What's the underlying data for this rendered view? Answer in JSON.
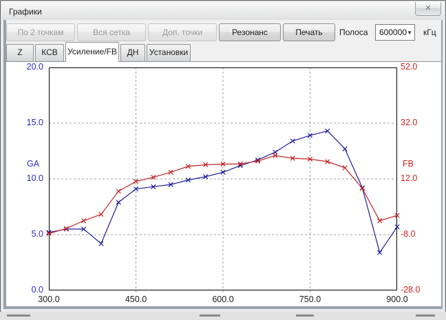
{
  "window": {
    "title": "Графики",
    "close_glyph": "✕"
  },
  "toolbar": {
    "buttons": [
      {
        "label": "По 2 точкам",
        "enabled": false
      },
      {
        "label": "Вся сетка",
        "enabled": false
      },
      {
        "label": "Доп. точки",
        "enabled": false
      },
      {
        "label": "Резонанс",
        "enabled": true
      },
      {
        "label": "Печать",
        "enabled": true
      }
    ],
    "band_label": "Полоса",
    "band_value": "600000",
    "band_unit": "кГц",
    "combo_arrow": "▼"
  },
  "tabs": [
    {
      "label": "Z",
      "active": false
    },
    {
      "label": "КСВ",
      "active": false
    },
    {
      "label": "Усиление/FB",
      "active": true
    },
    {
      "label": "ДН",
      "active": false
    },
    {
      "label": "Установки",
      "active": false
    }
  ],
  "chart_data": {
    "type": "line",
    "title": "",
    "grid": true,
    "x_axis": {
      "min": 300,
      "max": 900,
      "ticks": [
        300,
        450,
        600,
        750,
        900
      ],
      "gridlines": [
        450,
        600,
        750
      ]
    },
    "left_axis": {
      "label": "GA",
      "color": "#2929c8",
      "min": 0,
      "max": 20,
      "ticks": [
        0,
        5,
        10,
        15,
        20
      ],
      "gridlines": [
        5,
        10,
        15
      ]
    },
    "right_axis": {
      "label": "FB",
      "color": "#cc2222",
      "min": -28,
      "max": 52,
      "ticks": [
        -28,
        -8,
        12,
        32,
        52
      ],
      "gridlines": [
        -8,
        12,
        32
      ]
    },
    "x": [
      300,
      330,
      360,
      390,
      420,
      450,
      480,
      510,
      540,
      570,
      600,
      630,
      660,
      690,
      720,
      750,
      780,
      810,
      840,
      870,
      900
    ],
    "series": [
      {
        "name": "GA",
        "axis": "left",
        "color": "#1c1c9c",
        "values": [
          5.2,
          5.5,
          5.5,
          4.2,
          7.9,
          9.1,
          9.3,
          9.5,
          9.9,
          10.2,
          10.6,
          11.2,
          11.7,
          12.4,
          13.4,
          13.9,
          14.3,
          12.7,
          9.2,
          3.4,
          5.7
        ]
      },
      {
        "name": "FB",
        "axis": "right",
        "color": "#c22222",
        "values": [
          -7.6,
          -5.8,
          -3.0,
          -0.7,
          7.6,
          11.1,
          12.6,
          14.4,
          16.5,
          17.1,
          17.3,
          17.4,
          18.4,
          20.4,
          19.4,
          19.1,
          18.2,
          16.0,
          8.6,
          -3.0,
          -1.1
        ]
      }
    ]
  }
}
